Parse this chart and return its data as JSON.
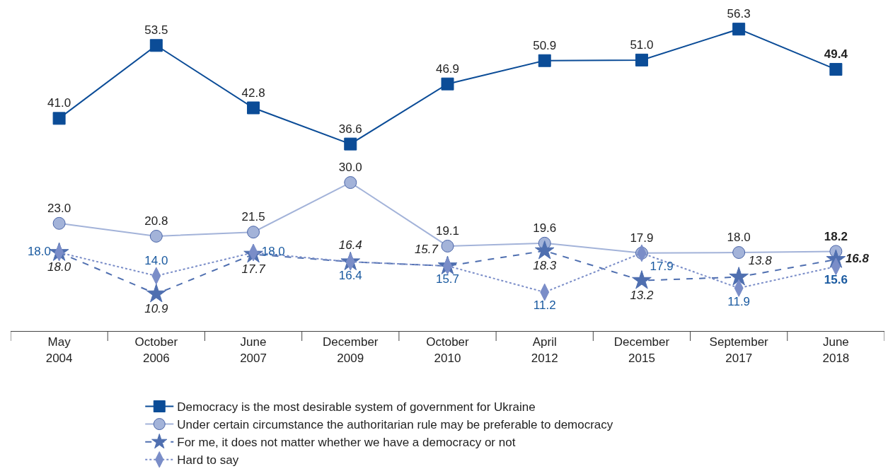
{
  "chart_data": {
    "type": "line",
    "categories": [
      "May\n2004",
      "October\n2006",
      "June\n2007",
      "December\n2009",
      "October\n2010",
      "April\n2012",
      "December\n2015",
      "September\n2017",
      "June\n2018"
    ],
    "series": [
      {
        "name": "Democracy is the most desirable system of government for Ukraine",
        "color": "#0b4c97",
        "marker": "square",
        "line_style": "solid",
        "values": [
          41.0,
          53.5,
          42.8,
          36.6,
          46.9,
          50.9,
          51.0,
          56.3,
          49.4
        ],
        "value_labels": [
          "41.0",
          "53.5",
          "42.8",
          "36.6",
          "46.9",
          "50.9",
          "51.0",
          "56.3",
          "49.4"
        ]
      },
      {
        "name": "Under certain circumstance the authoritarian rule may be preferable to democracy",
        "color": "#a3b3d9",
        "marker": "circle",
        "line_style": "solid",
        "values": [
          23.0,
          20.8,
          21.5,
          30.0,
          19.1,
          19.6,
          17.9,
          18.0,
          18.2
        ],
        "value_labels": [
          "23.0",
          "20.8",
          "21.5",
          "30.0",
          "19.1",
          "19.6",
          "17.9",
          "18.0",
          "18.2"
        ]
      },
      {
        "name": "For me, it does not matter whether we have a democracy or not",
        "color": "#4f6fb0",
        "marker": "star",
        "line_style": "dashed",
        "values": [
          18.0,
          10.9,
          17.7,
          16.4,
          15.7,
          18.3,
          13.2,
          13.8,
          16.8
        ],
        "value_labels": [
          "18.0",
          "10.9",
          "17.7",
          "16.4",
          "15.7",
          "18.3",
          "13.2",
          "13.8",
          "16.8"
        ]
      },
      {
        "name": "Hard to say",
        "color": "#7a8dc8",
        "marker": "diamond",
        "line_style": "dotted",
        "values": [
          18.0,
          14.0,
          18.0,
          16.4,
          15.7,
          11.2,
          17.9,
          11.9,
          15.6
        ],
        "value_labels": [
          "18.0",
          "14.0",
          "18.0",
          "16.4",
          "15.7",
          "11.2",
          "17.9",
          "11.9",
          "15.6"
        ]
      }
    ],
    "legend": "bottom",
    "tick_labels": "x"
  }
}
